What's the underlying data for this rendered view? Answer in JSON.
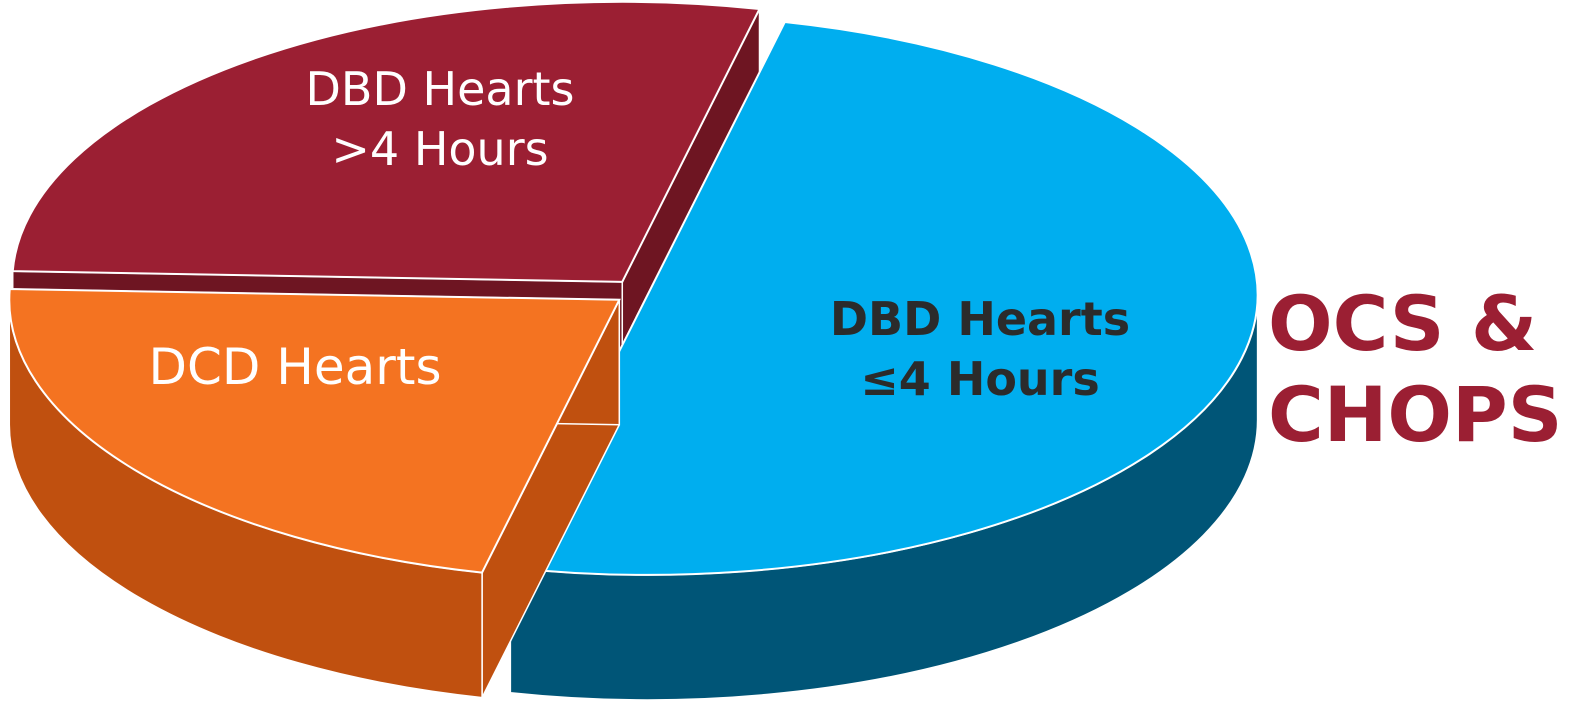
{
  "chart_data": {
    "type": "pie",
    "categories": [
      "DBD Hearts ≤4 Hours",
      "DBD Hearts >4 Hours",
      "DCD Hearts"
    ],
    "values": [
      50,
      22,
      28
    ],
    "colors": [
      "#00aeef",
      "#f47321",
      "#9b1f33"
    ],
    "side_colors": [
      "#005577",
      "#c0500f",
      "#6e1522"
    ],
    "annotation": "OCS & CHOPS"
  }
}
